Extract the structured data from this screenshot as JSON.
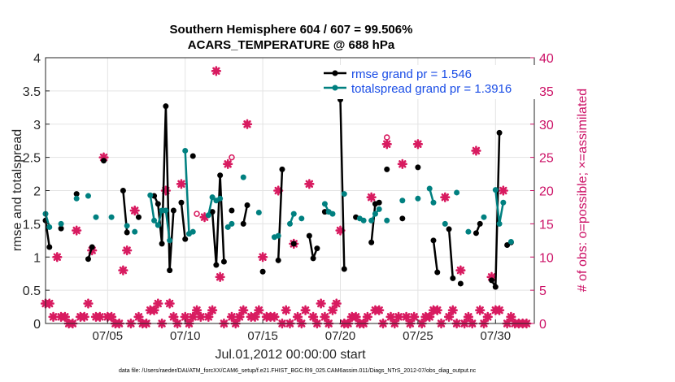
{
  "chart_data": {
    "type": "line",
    "title": "Southern Hemisphere 604 / 607 = 99.506%",
    "subtitle": "ACARS_TEMPERATURE @ 688 hPa",
    "xlabel": "Jul.01,2012 00:00:00 start",
    "ylabel": "rmse and totalspread",
    "ylabel_right": "# of obs: o=possible; ×=assimilated",
    "footnote": "data file: /Users/raeder/DAI/ATM_forcXX/CAM6_setup/f.e21.FHIST_BGC.f09_025.CAM6assim.011/Diags_NTrS_2012-07/obs_diag_output.nc",
    "xlim": [
      1,
      32.5
    ],
    "ylim": [
      0,
      4
    ],
    "ylim_right": [
      0,
      40
    ],
    "xticks": [
      5,
      10,
      15,
      20,
      25,
      30
    ],
    "xtick_labels": [
      "07/05",
      "07/10",
      "07/15",
      "07/20",
      "07/25",
      "07/30"
    ],
    "yticks": [
      "0",
      "0.5",
      "1",
      "1.5",
      "2",
      "2.5",
      "3",
      "3.5",
      "4"
    ],
    "yticks_right": [
      "0",
      "5",
      "10",
      "15",
      "20",
      "25",
      "30",
      "35",
      "40"
    ],
    "legend_position": "top-right",
    "colors": {
      "rmse": "#000000",
      "spread": "#008080",
      "obs": "#d81b60"
    },
    "series": [
      {
        "name": "rmse grand pr = 1.546",
        "x": [
          1.0,
          1.25,
          null,
          2.0,
          null,
          3.0,
          null,
          3.75,
          4.0,
          null,
          4.75,
          null,
          6.0,
          6.25,
          null,
          7.0,
          null,
          8.0,
          8.25,
          8.5,
          8.75,
          9.0,
          9.25,
          null,
          9.75,
          10.0,
          null,
          10.5,
          null,
          11.75,
          12.0,
          12.25,
          12.5,
          null,
          13.0,
          null,
          13.75,
          14.0,
          null,
          15.0,
          null,
          16.0,
          16.25,
          null,
          17.0,
          null,
          18.0,
          18.25,
          18.5,
          null,
          19.0,
          null,
          20.0,
          20.25,
          null,
          21.0,
          null,
          22.0,
          22.25,
          22.5,
          null,
          23.0,
          null,
          24.0,
          null,
          25.0,
          null,
          26.0,
          26.25,
          null,
          27.0,
          27.25,
          null,
          27.75,
          null,
          28.75,
          29.0,
          null,
          29.75,
          30.0,
          30.25,
          null,
          30.75,
          31.0
        ],
        "y": [
          1.55,
          1.15,
          null,
          1.43,
          null,
          1.95,
          null,
          0.97,
          1.15,
          null,
          2.45,
          null,
          2.0,
          1.37,
          null,
          1.6,
          null,
          1.92,
          1.8,
          1.2,
          3.27,
          0.8,
          1.7,
          null,
          1.82,
          1.27,
          null,
          2.52,
          null,
          1.68,
          0.88,
          2.23,
          0.93,
          null,
          1.7,
          null,
          1.5,
          1.78,
          null,
          0.78,
          null,
          0.95,
          2.32,
          null,
          1.2,
          null,
          1.32,
          0.98,
          1.13,
          null,
          1.68,
          null,
          3.37,
          0.82,
          null,
          1.6,
          null,
          1.22,
          1.8,
          1.82,
          null,
          2.32,
          null,
          1.58,
          null,
          2.35,
          null,
          1.25,
          0.77,
          null,
          1.42,
          0.68,
          null,
          0.6,
          null,
          1.36,
          1.5,
          null,
          0.65,
          0.55,
          2.87,
          null,
          1.18,
          1.22
        ]
      },
      {
        "name": "totalspread grand pr = 1.3916",
        "x": [
          1.0,
          1.25,
          null,
          2.0,
          null,
          3.0,
          null,
          3.75,
          null,
          4.25,
          null,
          5.25,
          null,
          6.25,
          null,
          6.75,
          null,
          7.75,
          8.0,
          8.25,
          8.5,
          8.75,
          9.0,
          null,
          10.0,
          10.25,
          10.5,
          null,
          11.5,
          11.75,
          12.0,
          12.25,
          null,
          12.75,
          13.0,
          null,
          13.75,
          null,
          14.75,
          null,
          15.75,
          16.0,
          null,
          16.75,
          17.0,
          null,
          17.5,
          null,
          19.0,
          19.25,
          19.5,
          null,
          20.25,
          null,
          21.25,
          21.5,
          null,
          22.0,
          22.25,
          22.5,
          null,
          23.0,
          null,
          24.0,
          null,
          25.0,
          null,
          25.75,
          26.0,
          null,
          26.75,
          null,
          27.5,
          null,
          28.25,
          null,
          29.25,
          null,
          30.0,
          30.25,
          30.5,
          null,
          31.0
        ],
        "y": [
          1.65,
          1.45,
          null,
          1.5,
          null,
          1.88,
          null,
          1.92,
          null,
          1.6,
          null,
          1.6,
          null,
          1.47,
          null,
          1.38,
          null,
          1.93,
          1.55,
          1.48,
          1.7,
          1.7,
          1.25,
          null,
          2.6,
          1.35,
          1.38,
          null,
          1.63,
          1.9,
          1.85,
          1.88,
          null,
          1.45,
          1.5,
          null,
          2.2,
          null,
          1.67,
          null,
          1.3,
          1.32,
          null,
          1.5,
          1.65,
          null,
          1.58,
          null,
          1.8,
          1.68,
          1.65,
          null,
          1.95,
          null,
          1.58,
          1.55,
          null,
          1.55,
          1.65,
          1.72,
          null,
          1.55,
          null,
          1.85,
          null,
          1.88,
          null,
          2.03,
          1.82,
          null,
          1.5,
          null,
          1.97,
          null,
          1.38,
          null,
          1.6,
          null,
          2.01,
          1.5,
          1.82,
          null,
          1.23
        ]
      },
      {
        "name": "# of obs assimilated",
        "x": [
          1.0,
          1.25,
          1.5,
          1.75,
          2.0,
          2.25,
          2.5,
          2.75,
          3.0,
          3.25,
          3.5,
          3.75,
          4.0,
          4.25,
          4.5,
          4.75,
          5.0,
          5.25,
          5.5,
          5.75,
          6.0,
          6.25,
          6.5,
          6.75,
          7.0,
          7.25,
          7.5,
          7.75,
          8.0,
          8.25,
          8.5,
          8.75,
          9.0,
          9.25,
          9.5,
          9.75,
          10.0,
          10.25,
          10.5,
          10.75,
          11.0,
          11.25,
          11.5,
          11.75,
          12.0,
          12.25,
          12.5,
          12.75,
          13.0,
          13.25,
          13.5,
          13.75,
          14.0,
          14.25,
          14.5,
          14.75,
          15.0,
          15.25,
          15.5,
          15.75,
          16.0,
          16.25,
          16.5,
          16.75,
          17.0,
          17.25,
          17.5,
          17.75,
          18.0,
          18.25,
          18.5,
          18.75,
          19.0,
          19.25,
          19.5,
          19.75,
          20.0,
          20.25,
          20.5,
          20.75,
          21.0,
          21.25,
          21.5,
          21.75,
          22.0,
          22.25,
          22.5,
          22.75,
          23.0,
          23.25,
          23.5,
          23.75,
          24.0,
          24.25,
          24.5,
          24.75,
          25.0,
          25.25,
          25.5,
          25.75,
          26.0,
          26.25,
          26.5,
          26.75,
          27.0,
          27.25,
          27.5,
          27.75,
          28.0,
          28.25,
          28.5,
          28.75,
          29.0,
          29.25,
          29.5,
          29.75,
          30.0,
          30.25,
          30.5,
          30.75,
          31.0,
          31.25,
          31.5,
          31.75,
          32.0
        ],
        "y": [
          3,
          3,
          1,
          10,
          1,
          1,
          0,
          0,
          14,
          1,
          1,
          3,
          11,
          1,
          1,
          25,
          1,
          1,
          0,
          0,
          8,
          11,
          0,
          17,
          1,
          0,
          0,
          2,
          2,
          3,
          0,
          20,
          3,
          1,
          0,
          21,
          1,
          0,
          1,
          2,
          1,
          16,
          1,
          2,
          38,
          7,
          0,
          24,
          1,
          0,
          1,
          2,
          30,
          1,
          1,
          2,
          10,
          1,
          1,
          1,
          20,
          0,
          2,
          0,
          12,
          1,
          0,
          2,
          21,
          1,
          0,
          3,
          1,
          0,
          2,
          3,
          14,
          0,
          0,
          1,
          1,
          0,
          0,
          1,
          19,
          2,
          2,
          0,
          27,
          1,
          0,
          1,
          24,
          1,
          0,
          1,
          27,
          0,
          1,
          1,
          2,
          2,
          0,
          19,
          1,
          2,
          0,
          8,
          0,
          1,
          0,
          26,
          2,
          0,
          1,
          7,
          2,
          2,
          20,
          0,
          1,
          0,
          0,
          0,
          0
        ]
      },
      {
        "name": "# of obs possible",
        "x": [
          10.75,
          13.0,
          23.0
        ],
        "y": [
          16.5,
          25,
          28
        ]
      }
    ]
  }
}
